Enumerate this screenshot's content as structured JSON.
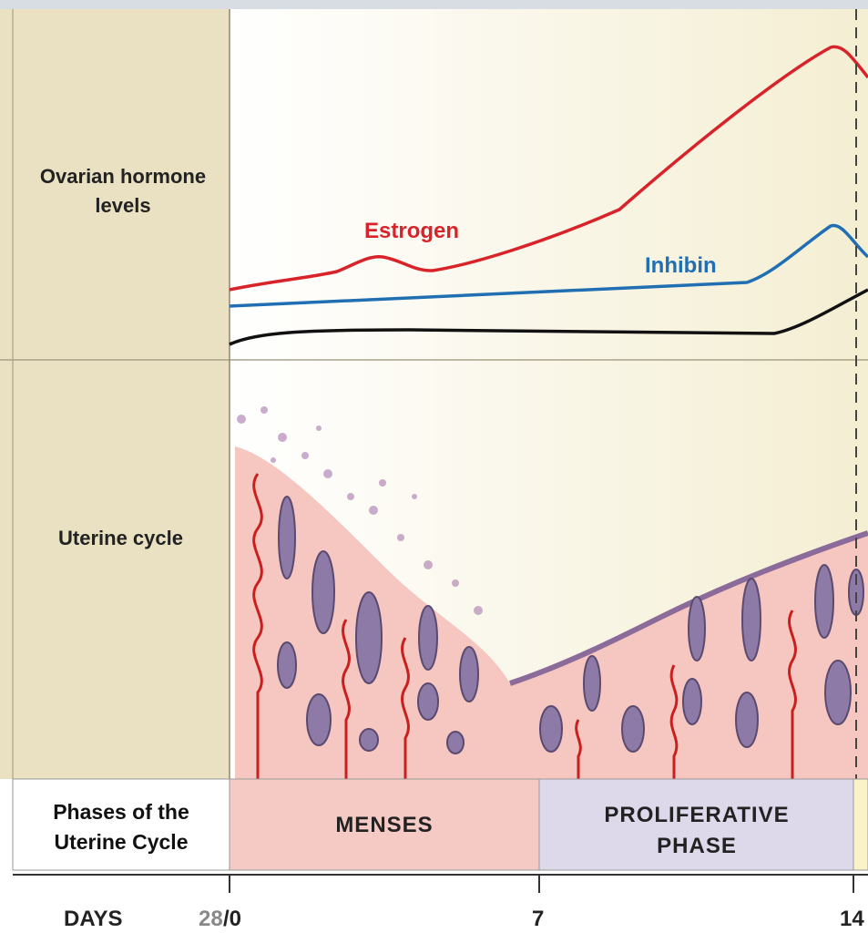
{
  "panels": {
    "hormones": {
      "label": "Ovarian hormone levels",
      "curves": [
        "Estrogen",
        "Inhibin"
      ]
    },
    "uterine": {
      "label": "Uterine cycle"
    },
    "phases": {
      "label": "Phases of the Uterine Cycle",
      "items": [
        "MENSES",
        "PROLIFERATIVE PHASE"
      ]
    }
  },
  "days": {
    "label": "DAYS",
    "ticks": [
      "28",
      "/0",
      "7",
      "14"
    ]
  }
}
